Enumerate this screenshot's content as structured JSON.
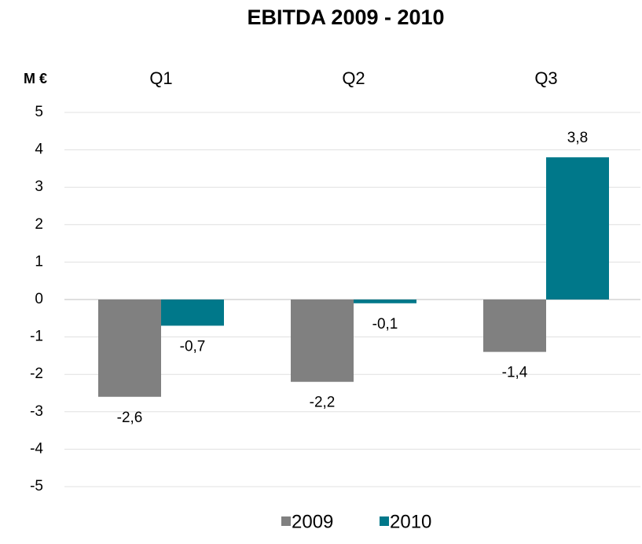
{
  "chart_data": {
    "type": "bar",
    "title": "EBITDA  2009 - 2010",
    "y_axis_label": "M €",
    "categories": [
      "Q1",
      "Q2",
      "Q3"
    ],
    "series": [
      {
        "name": "2009",
        "color": "#808080",
        "values": [
          -2.6,
          -2.2,
          -1.4
        ],
        "value_labels": [
          "-2,6",
          "-2,2",
          "-1,4"
        ]
      },
      {
        "name": "2010",
        "color": "#00788a",
        "values": [
          -0.7,
          -0.1,
          3.8
        ],
        "value_labels": [
          "-0,7",
          "-0,1",
          "3,8"
        ]
      }
    ],
    "ylim": [
      -5,
      5
    ],
    "yticks": [
      -5,
      -4,
      -3,
      -2,
      -1,
      0,
      1,
      2,
      3,
      4,
      5
    ],
    "grid": true,
    "legend": "bottom"
  }
}
